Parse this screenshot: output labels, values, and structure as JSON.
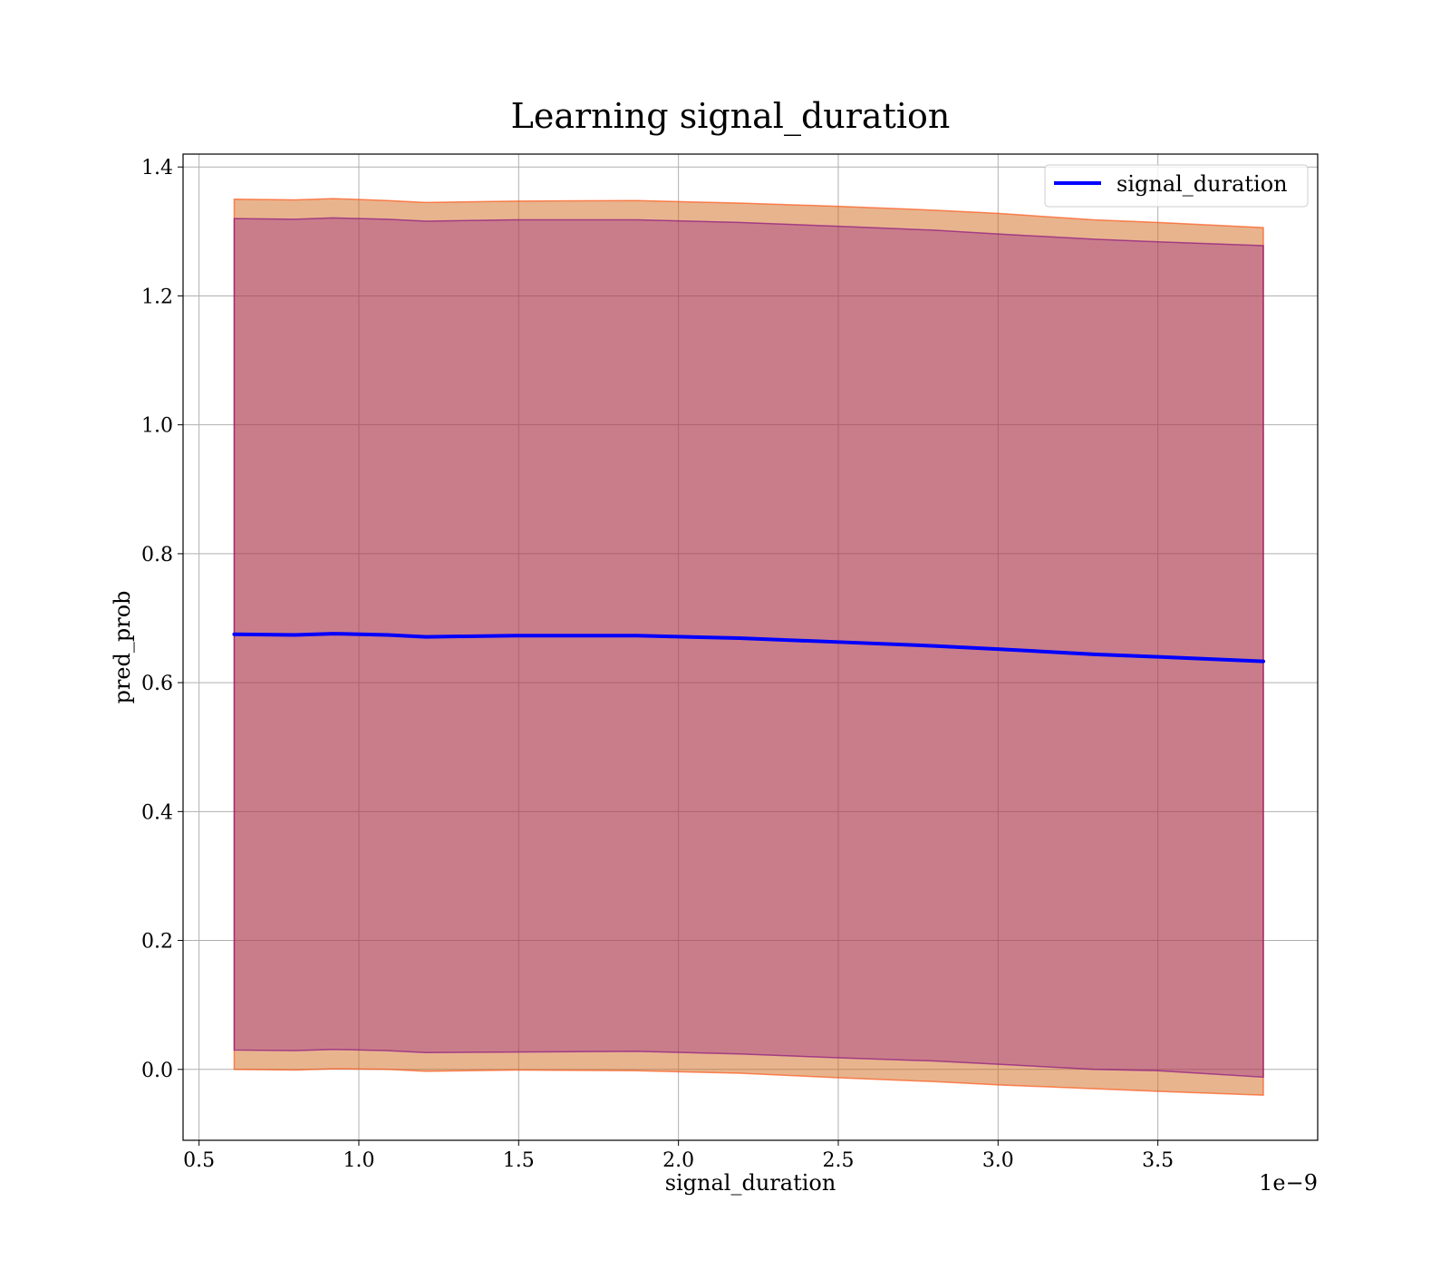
{
  "chart_data": {
    "type": "line",
    "title": "Learning signal_duration",
    "xlabel": "signal_duration",
    "ylabel": "pred_prob",
    "x_offset_label": "1e−9",
    "xlim": [
      0.45,
      4.0
    ],
    "ylim": [
      -0.11,
      1.42
    ],
    "x_ticks": [
      0.5,
      1.0,
      1.5,
      2.0,
      2.5,
      3.0,
      3.5
    ],
    "x_tick_labels": [
      "0.5",
      "1.0",
      "1.5",
      "2.0",
      "2.5",
      "3.0",
      "3.5"
    ],
    "y_ticks": [
      0.0,
      0.2,
      0.4,
      0.6,
      0.8,
      1.0,
      1.2,
      1.4
    ],
    "y_tick_labels": [
      "0.0",
      "0.2",
      "0.4",
      "0.6",
      "0.8",
      "1.0",
      "1.2",
      "1.4"
    ],
    "grid": true,
    "legend_position": "top-right",
    "x": [
      0.61,
      0.8,
      0.92,
      1.09,
      1.21,
      1.49,
      1.87,
      2.19,
      2.5,
      2.8,
      3.0,
      3.3,
      3.5,
      3.83
    ],
    "series": [
      {
        "name": "signal_duration",
        "kind": "line",
        "color": "#0000ff",
        "values": [
          0.675,
          0.674,
          0.676,
          0.674,
          0.671,
          0.673,
          0.673,
          0.669,
          0.663,
          0.657,
          0.652,
          0.644,
          0.64,
          0.633
        ]
      },
      {
        "kind": "band",
        "color": "#d2691e",
        "edge_color": "#ff4500",
        "opacity": 0.5,
        "lower": [
          0.0,
          -0.001,
          0.001,
          0.0,
          -0.003,
          -0.001,
          -0.002,
          -0.006,
          -0.013,
          -0.019,
          -0.024,
          -0.03,
          -0.034,
          -0.04
        ],
        "upper": [
          1.35,
          1.349,
          1.351,
          1.348,
          1.345,
          1.347,
          1.348,
          1.344,
          1.339,
          1.333,
          1.328,
          1.318,
          1.314,
          1.306
        ]
      },
      {
        "kind": "band",
        "color": "#800080",
        "edge_color": "#800080",
        "opacity": 0.3,
        "lower": [
          0.03,
          0.029,
          0.031,
          0.029,
          0.026,
          0.027,
          0.028,
          0.024,
          0.018,
          0.013,
          0.008,
          0.0,
          -0.002,
          -0.012
        ],
        "upper": [
          1.32,
          1.319,
          1.321,
          1.319,
          1.316,
          1.318,
          1.318,
          1.314,
          1.308,
          1.302,
          1.296,
          1.288,
          1.284,
          1.278
        ]
      }
    ]
  }
}
